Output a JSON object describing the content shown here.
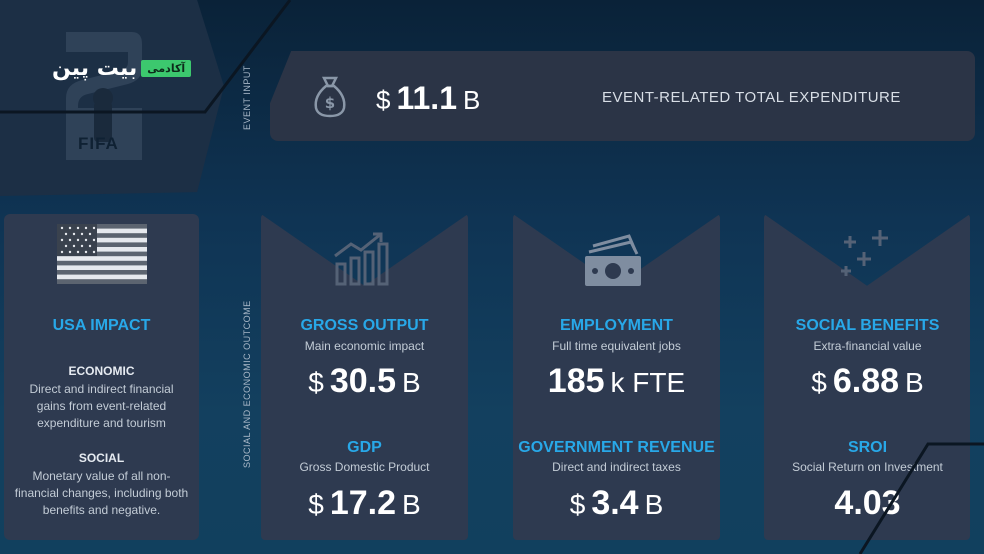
{
  "brand": {
    "name": "بیت پین",
    "tag": "آکادمی"
  },
  "logo": {
    "text": "FIFA"
  },
  "side_labels": {
    "input": "EVENT INPUT",
    "outcome": "SOCIAL AND ECONOMIC OUTCOME"
  },
  "banner": {
    "currency": "$",
    "value": "11.1",
    "unit": "B",
    "label": "EVENT-RELATED TOTAL EXPENDITURE",
    "icon": "money-bag-icon"
  },
  "usa": {
    "title": "USA IMPACT",
    "economic_head": "ECONOMIC",
    "economic_text": "Direct and indirect financial gains from event-related expenditure and tourism",
    "social_head": "SOCIAL",
    "social_text": "Monetary value of all non-financial changes, including both benefits and negative."
  },
  "cards": [
    {
      "icon": "bar-chart-growth-icon",
      "m1": {
        "title": "GROSS OUTPUT",
        "sub": "Main economic impact",
        "cur": "$",
        "num": "30.5",
        "unit": "B"
      },
      "m2": {
        "title": "GDP",
        "sub": "Gross Domestic Product",
        "cur": "$",
        "num": "17.2",
        "unit": "B"
      }
    },
    {
      "icon": "banknote-icon",
      "m1": {
        "title": "EMPLOYMENT",
        "sub": "Full time equivalent jobs",
        "cur": "",
        "num": "185",
        "unit": "k FTE"
      },
      "m2": {
        "title": "GOVERNMENT REVENUE",
        "sub": "Direct and indirect taxes",
        "cur": "$",
        "num": "3.4",
        "unit": "B"
      }
    },
    {
      "icon": "sparkle-plus-icon",
      "m1": {
        "title": "SOCIAL BENEFITS",
        "sub": "Extra-financial value",
        "cur": "$",
        "num": "6.88",
        "unit": "B"
      },
      "m2": {
        "title": "SROI",
        "sub": "Social Return on Investment",
        "cur": "",
        "num": "4.03",
        "unit": ""
      }
    }
  ],
  "colors": {
    "accent": "#28a8e8",
    "card": "#2e3a50",
    "banner": "#2b3446",
    "brand_tag": "#3cc86e"
  }
}
